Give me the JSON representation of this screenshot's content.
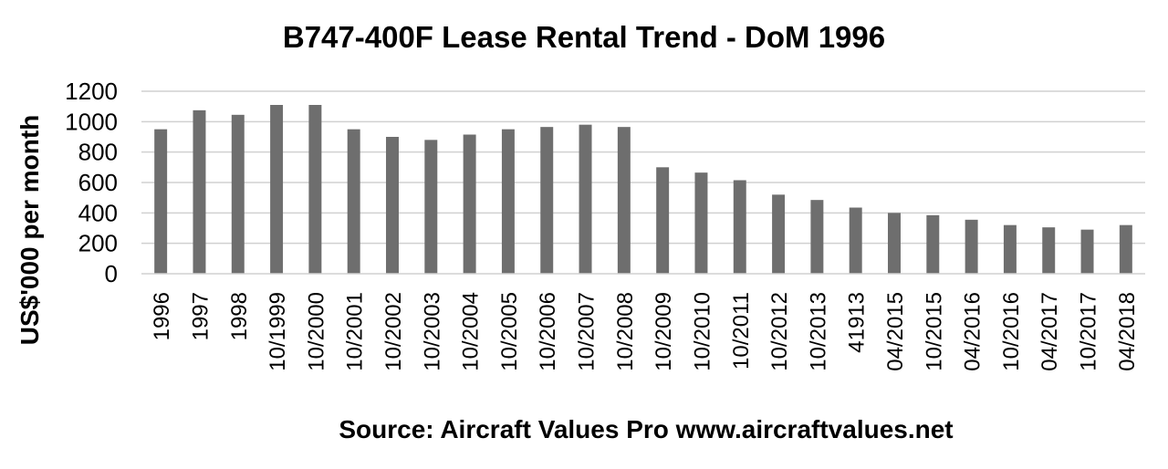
{
  "chart_data": {
    "type": "bar",
    "title": "B747-400F Lease Rental Trend - DoM 1996",
    "xlabel": "Source: Aircraft Values Pro www.aircraftvalues.net",
    "ylabel": "US$'000 per month",
    "ylim": [
      0,
      1200
    ],
    "yticks": [
      0,
      200,
      400,
      600,
      800,
      1000,
      1200
    ],
    "grid": true,
    "legend": "none",
    "bar_color": "#6e6e6e",
    "grid_color": "#d0d0d0",
    "categories": [
      "1996",
      "1997",
      "1998",
      "10/1999",
      "10/2000",
      "10/2001",
      "10/2002",
      "10/2003",
      "10/2004",
      "10/2005",
      "10/2006",
      "10/2007",
      "10/2008",
      "10/2009",
      "10/2010",
      "10/2011",
      "10/2012",
      "10/2013",
      "41913",
      "04/2015",
      "10/2015",
      "04/2016",
      "10/2016",
      "04/2017",
      "10/2017",
      "04/2018"
    ],
    "values": [
      950,
      1075,
      1045,
      1110,
      1110,
      950,
      900,
      880,
      915,
      950,
      965,
      980,
      965,
      700,
      665,
      615,
      520,
      485,
      435,
      400,
      385,
      355,
      320,
      305,
      290,
      320
    ]
  }
}
